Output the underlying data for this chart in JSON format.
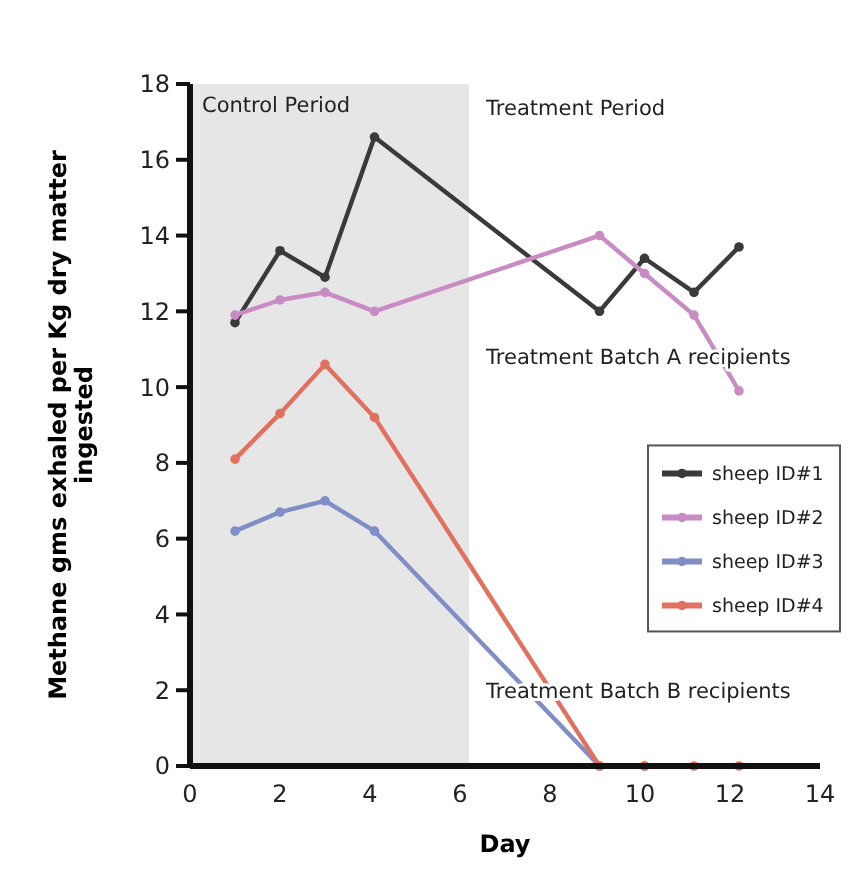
{
  "chart_data": {
    "type": "line",
    "xlabel": "Day",
    "ylabel": "Methane gms exhaled per Kg dry matter ingested",
    "xlim": [
      0,
      14
    ],
    "xticks": [
      0,
      2,
      4,
      6,
      8,
      10,
      12,
      14
    ],
    "ylim": [
      0,
      18
    ],
    "yticks": [
      0,
      2,
      4,
      6,
      8,
      10,
      12,
      14,
      16,
      18
    ],
    "x": [
      1,
      2,
      3,
      4.1,
      9.1,
      10.1,
      11.2,
      12.2
    ],
    "series": [
      {
        "name": "sheep ID#1",
        "color": "#3a3a3a",
        "values": [
          11.7,
          13.6,
          12.9,
          16.6,
          12.0,
          13.4,
          12.5,
          13.7
        ]
      },
      {
        "name": "sheep ID#2",
        "color": "#c98bc4",
        "values": [
          11.9,
          12.3,
          12.5,
          12.0,
          14.0,
          13.0,
          11.9,
          9.9
        ]
      },
      {
        "name": "sheep ID#3",
        "color": "#7f8ec6",
        "values": [
          6.2,
          6.7,
          7.0,
          6.2,
          0,
          0,
          null,
          null
        ]
      },
      {
        "name": "sheep ID#4",
        "color": "#e2705f",
        "values": [
          8.1,
          9.3,
          10.6,
          9.2,
          0,
          0,
          0,
          0
        ]
      }
    ],
    "bands": [
      {
        "axis": "x",
        "from": 0,
        "to": 6.2,
        "label": "Control Period",
        "color": "#e6e6e6"
      }
    ],
    "annotations": [
      "Treatment Period",
      "Treatment Batch A recipients",
      "Treatment Batch B recipients"
    ],
    "marker": "circle",
    "legend": "right",
    "grid": false
  }
}
